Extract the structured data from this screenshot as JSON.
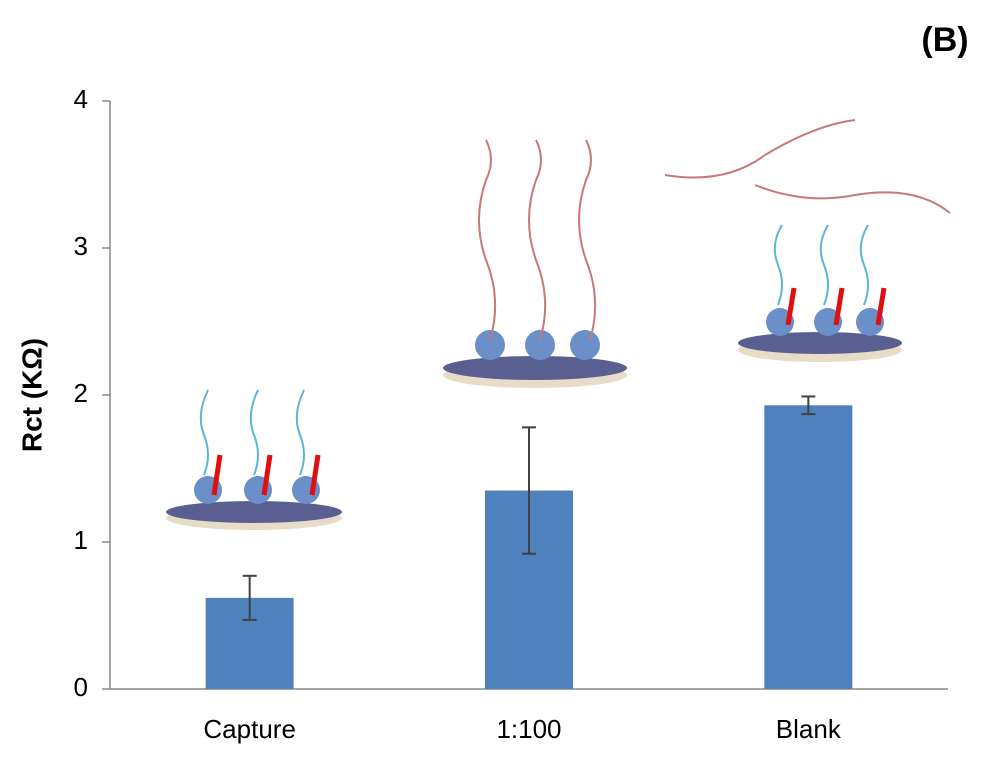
{
  "chart_data": {
    "type": "bar",
    "title": "(B)",
    "y_label": "Rct (KΩ)",
    "categories": [
      "Capture",
      "1:100",
      "Blank"
    ],
    "values": [
      0.62,
      1.35,
      1.93
    ],
    "errors": [
      0.15,
      0.43,
      0.06
    ],
    "color": "#4f81bd",
    "error_color": "#404040",
    "ylim": [
      0,
      4
    ],
    "yticks": [
      0,
      1,
      2,
      3,
      4
    ],
    "grid": false
  }
}
